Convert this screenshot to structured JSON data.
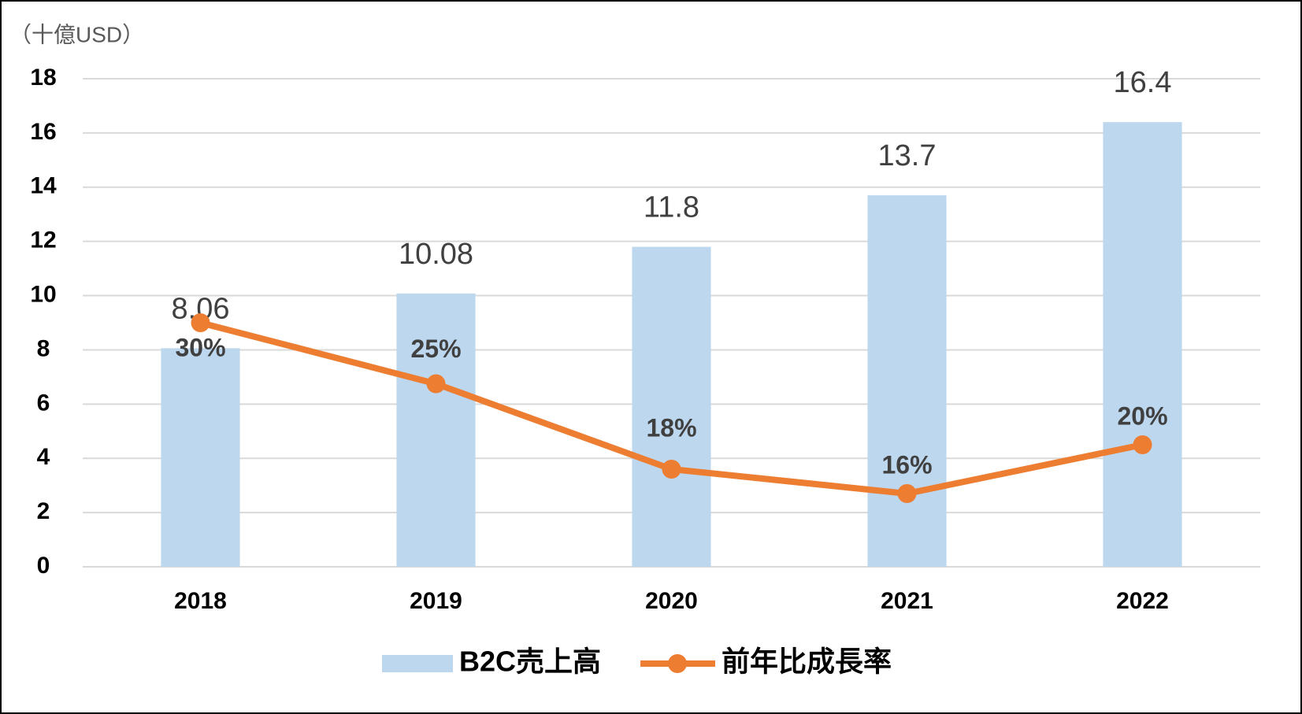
{
  "chart_data": {
    "type": "bar_line",
    "y_axis_label": "（十億USD）",
    "categories": [
      "2018",
      "2019",
      "2020",
      "2021",
      "2022"
    ],
    "series": [
      {
        "name": "B2C売上高",
        "type": "bar",
        "color": "#bdd7ee",
        "values": [
          8.06,
          10.08,
          11.8,
          13.7,
          16.4
        ]
      },
      {
        "name": "前年比成長率",
        "type": "line",
        "color": "#ed7d31",
        "axis": "y2",
        "values": [
          30,
          25,
          18,
          16,
          20
        ],
        "value_labels": [
          "30%",
          "25%",
          "18%",
          "16%",
          "20%"
        ]
      }
    ],
    "ylim": [
      0,
      18
    ],
    "yticks": [
      0,
      2,
      4,
      6,
      8,
      10,
      12,
      14,
      16,
      18
    ],
    "y2lim": [
      10,
      50
    ],
    "grid": true,
    "legend": "bottom"
  }
}
